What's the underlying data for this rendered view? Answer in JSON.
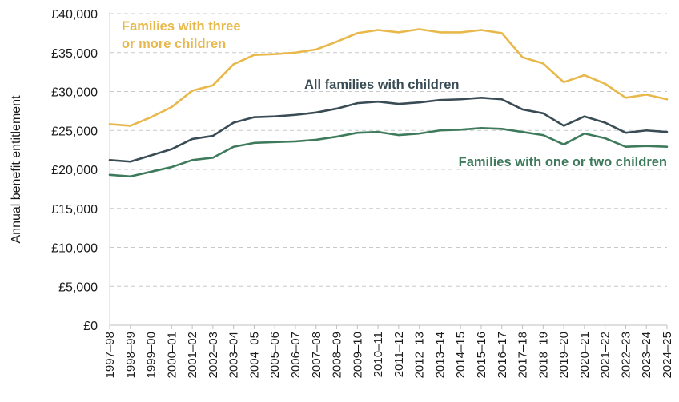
{
  "chart_data": {
    "type": "line",
    "title": "",
    "xlabel": "",
    "ylabel": "Annual benefit entitlement",
    "ylim": [
      0,
      40000
    ],
    "ytick_values": [
      0,
      5000,
      10000,
      15000,
      20000,
      25000,
      30000,
      35000,
      40000
    ],
    "ytick_labels": [
      "£0",
      "£5,000",
      "£10,000",
      "£15,000",
      "£20,000",
      "£25,000",
      "£30,000",
      "£35,000",
      "£40,000"
    ],
    "grid": "horizontal dashed",
    "categories": [
      "1997–98",
      "1998–99",
      "1999–00",
      "2000–01",
      "2001–02",
      "2002–03",
      "2003–04",
      "2004–05",
      "2005–06",
      "2006–07",
      "2007–08",
      "2008–09",
      "2009–10",
      "2010–11",
      "2011–12",
      "2012–13",
      "2013–14",
      "2014–15",
      "2015–16",
      "2016–17",
      "2017–18",
      "2018–19",
      "2019–20",
      "2020–21",
      "2021–22",
      "2022–23",
      "2023–24",
      "2024–25"
    ],
    "series": [
      {
        "name": "Families with three or more children",
        "label_lines": [
          "Families with three",
          "or more children"
        ],
        "color": "#e8b84b",
        "values": [
          25800,
          25600,
          26700,
          28000,
          30100,
          30800,
          33500,
          34700,
          34800,
          35000,
          35400,
          36400,
          37500,
          37900,
          37600,
          38000,
          37600,
          37600,
          37900,
          37500,
          34400,
          33600,
          31200,
          32100,
          31000,
          29200,
          29600,
          29000
        ]
      },
      {
        "name": "All families with children",
        "label_lines": [
          "All families with children"
        ],
        "color": "#394b55",
        "values": [
          21200,
          21000,
          21800,
          22600,
          23900,
          24300,
          26000,
          26700,
          26800,
          27000,
          27300,
          27800,
          28500,
          28700,
          28400,
          28600,
          28900,
          29000,
          29200,
          29000,
          27700,
          27200,
          25600,
          26800,
          26000,
          24700,
          25000,
          24800
        ]
      },
      {
        "name": "Families with one or two children",
        "label_lines": [
          "Families with one or two children"
        ],
        "color": "#3e7a5c",
        "values": [
          19300,
          19100,
          19700,
          20300,
          21200,
          21500,
          22900,
          23400,
          23500,
          23600,
          23800,
          24200,
          24700,
          24800,
          24400,
          24600,
          25000,
          25100,
          25300,
          25200,
          24800,
          24400,
          23200,
          24600,
          24000,
          22900,
          23000,
          22900
        ]
      }
    ]
  }
}
